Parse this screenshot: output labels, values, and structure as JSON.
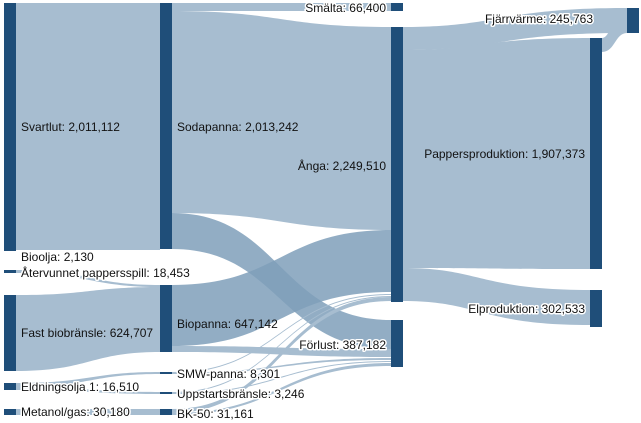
{
  "diagram": {
    "type": "sankey",
    "colors": {
      "node": "#1f4e79",
      "link": "#a7bdd0",
      "link_highlight": "#7f9fba",
      "background": "#ffffff"
    },
    "nodes": [
      {
        "id": "svartlut",
        "label": "Svartlut: 2,011,112"
      },
      {
        "id": "bioolja",
        "label": "Bioolja: 2,130"
      },
      {
        "id": "atervunnet",
        "label": "Återvunnet pappersspill: 18,453"
      },
      {
        "id": "fastbio",
        "label": "Fast biobränsle: 624,707"
      },
      {
        "id": "eldningsolja",
        "label": "Eldningsolja 1: 16,510"
      },
      {
        "id": "metanol",
        "label": "Metanol/gas: 30,180"
      },
      {
        "id": "sodapanna",
        "label": "Sodapanna: 2,013,242"
      },
      {
        "id": "biopanna",
        "label": "Biopanna: 647,142"
      },
      {
        "id": "smw",
        "label": "SMW-panna: 8,301"
      },
      {
        "id": "uppstart",
        "label": "Uppstartsbränsle: 3,246"
      },
      {
        "id": "bk50",
        "label": "BK-50: 31,161"
      },
      {
        "id": "smalta",
        "label": "Smälta: 66,400"
      },
      {
        "id": "anga",
        "label": "Ånga: 2,249,510"
      },
      {
        "id": "forlust",
        "label": "Förlust: 387,182"
      },
      {
        "id": "fjarrvarme",
        "label": "Fjärrvärme: 245,763"
      },
      {
        "id": "pappersprod",
        "label": "Pappersproduktion: 1,907,373"
      },
      {
        "id": "elprod",
        "label": "Elproduktion: 302,533"
      }
    ]
  }
}
